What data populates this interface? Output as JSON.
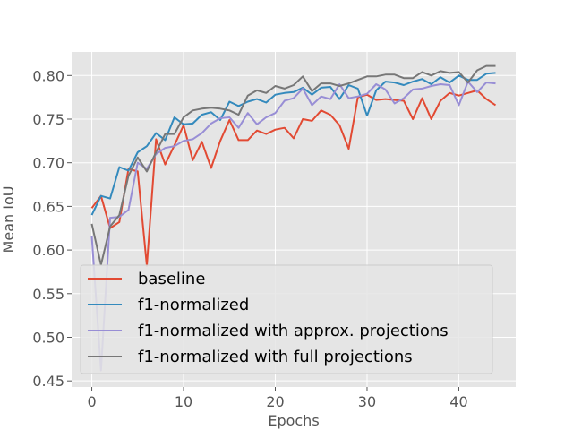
{
  "chart_data": {
    "type": "line",
    "title": "",
    "xlabel": "Epochs",
    "ylabel": "Mean IoU",
    "xlim": [
      -2.2,
      46.2
    ],
    "ylim": [
      0.443,
      0.827
    ],
    "xticks": [
      0,
      10,
      20,
      30,
      40
    ],
    "yticks": [
      0.45,
      0.5,
      0.55,
      0.6,
      0.65,
      0.7,
      0.75,
      0.8
    ],
    "ytick_labels": [
      "0.45",
      "0.50",
      "0.55",
      "0.60",
      "0.65",
      "0.70",
      "0.75",
      "0.80"
    ],
    "grid": true,
    "legend": "lower-left",
    "x": [
      0,
      1,
      2,
      3,
      4,
      5,
      6,
      7,
      8,
      9,
      10,
      11,
      12,
      13,
      14,
      15,
      16,
      17,
      18,
      19,
      20,
      21,
      22,
      23,
      24,
      25,
      26,
      27,
      28,
      29,
      30,
      31,
      32,
      33,
      34,
      35,
      36,
      37,
      38,
      39,
      40,
      41,
      42,
      43,
      44
    ],
    "series": [
      {
        "name": "baseline",
        "color": "#e24a33",
        "values": [
          0.648,
          0.662,
          0.625,
          0.632,
          0.693,
          0.69,
          0.582,
          0.727,
          0.698,
          0.72,
          0.743,
          0.703,
          0.724,
          0.694,
          0.725,
          0.749,
          0.726,
          0.726,
          0.737,
          0.733,
          0.738,
          0.74,
          0.728,
          0.75,
          0.748,
          0.76,
          0.755,
          0.743,
          0.716,
          0.775,
          0.778,
          0.772,
          0.773,
          0.772,
          0.771,
          0.75,
          0.774,
          0.75,
          0.771,
          0.78,
          0.777,
          0.78,
          0.783,
          0.773,
          0.766
        ]
      },
      {
        "name": "f1-normalized",
        "color": "#348abd",
        "values": [
          0.64,
          0.662,
          0.659,
          0.695,
          0.691,
          0.712,
          0.719,
          0.734,
          0.726,
          0.752,
          0.744,
          0.745,
          0.755,
          0.758,
          0.749,
          0.77,
          0.765,
          0.77,
          0.773,
          0.769,
          0.778,
          0.78,
          0.781,
          0.786,
          0.778,
          0.786,
          0.787,
          0.773,
          0.789,
          0.785,
          0.754,
          0.783,
          0.793,
          0.792,
          0.789,
          0.793,
          0.796,
          0.79,
          0.798,
          0.792,
          0.8,
          0.795,
          0.795,
          0.802,
          0.803
        ]
      },
      {
        "name": "f1-normalized with approx. projections",
        "color": "#988ed5",
        "values": [
          0.616,
          0.462,
          0.637,
          0.638,
          0.646,
          0.7,
          0.693,
          0.71,
          0.717,
          0.719,
          0.725,
          0.727,
          0.734,
          0.745,
          0.751,
          0.752,
          0.74,
          0.757,
          0.744,
          0.752,
          0.757,
          0.771,
          0.774,
          0.785,
          0.766,
          0.776,
          0.773,
          0.79,
          0.774,
          0.776,
          0.779,
          0.79,
          0.784,
          0.768,
          0.774,
          0.784,
          0.785,
          0.788,
          0.79,
          0.789,
          0.766,
          0.793,
          0.781,
          0.792,
          0.791
        ]
      },
      {
        "name": "f1-normalized with full projections",
        "color": "#777777",
        "values": [
          0.63,
          0.583,
          0.627,
          0.64,
          0.685,
          0.706,
          0.69,
          0.712,
          0.733,
          0.733,
          0.752,
          0.76,
          0.762,
          0.763,
          0.762,
          0.76,
          0.755,
          0.777,
          0.783,
          0.78,
          0.788,
          0.785,
          0.789,
          0.799,
          0.782,
          0.791,
          0.791,
          0.788,
          0.791,
          0.795,
          0.799,
          0.799,
          0.801,
          0.801,
          0.797,
          0.797,
          0.804,
          0.8,
          0.805,
          0.803,
          0.804,
          0.792,
          0.806,
          0.811,
          0.811
        ]
      }
    ]
  }
}
